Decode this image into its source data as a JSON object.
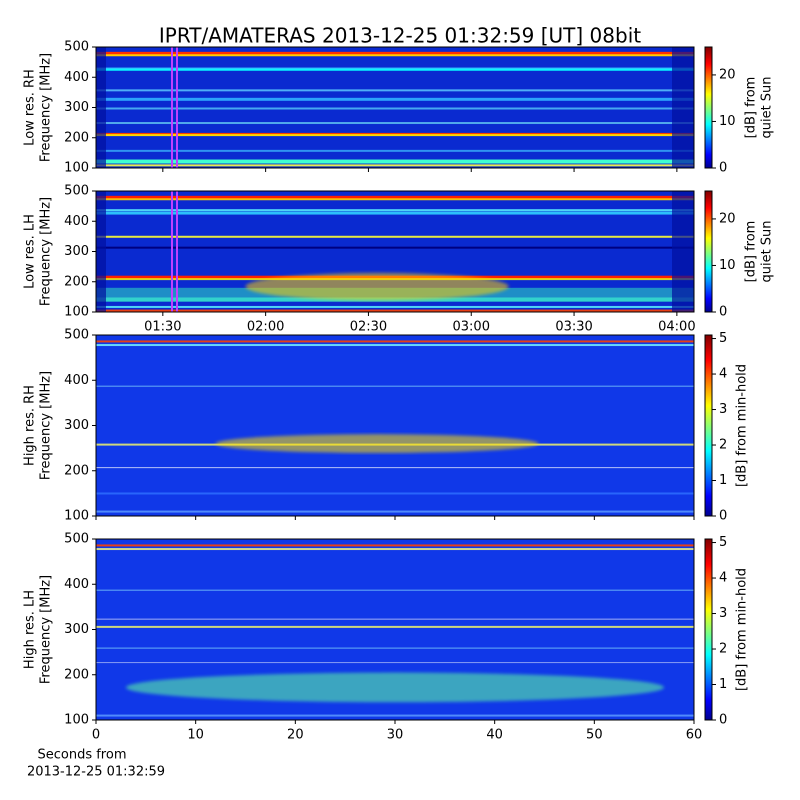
{
  "title": "IPRT/AMATERAS 2013-12-25 01:32:59 [UT]   08bit",
  "chart_data": [
    {
      "type": "heatmap",
      "ylabel": [
        "Low res. RH",
        "Frequency [MHz]"
      ],
      "xlim": [
        70.5,
        245
      ],
      "xticks": [
        90,
        120,
        150,
        180,
        210,
        240
      ],
      "ylim": [
        100,
        500
      ],
      "yticks": [
        100,
        200,
        300,
        400,
        500
      ],
      "colorbar": {
        "label": [
          "[dB] from",
          "quiet Sun"
        ],
        "lim": [
          0,
          26
        ],
        "ticks": [
          0,
          10,
          20
        ]
      }
    },
    {
      "type": "heatmap",
      "ylabel": [
        "Low res. LH",
        "Frequency [MHz]"
      ],
      "xlim": [
        70.5,
        245
      ],
      "xticks": [
        {
          "value": 90,
          "label": "01:30"
        },
        {
          "value": 120,
          "label": "02:00"
        },
        {
          "value": 150,
          "label": "02:30"
        },
        {
          "value": 180,
          "label": "03:00"
        },
        {
          "value": 210,
          "label": "03:30"
        },
        {
          "value": 240,
          "label": "04:00"
        }
      ],
      "ylim": [
        100,
        500
      ],
      "yticks": [
        100,
        200,
        300,
        400,
        500
      ],
      "colorbar": {
        "label": [
          "[dB] from",
          "quiet Sun"
        ],
        "lim": [
          0,
          26
        ],
        "ticks": [
          0,
          10,
          20
        ]
      }
    },
    {
      "type": "heatmap",
      "ylabel": [
        "High res. RH",
        "Frequency [MHz]"
      ],
      "xlim": [
        0,
        60
      ],
      "xticks": [
        0,
        10,
        20,
        30,
        40,
        50,
        60
      ],
      "ylim": [
        100,
        500
      ],
      "yticks": [
        100,
        200,
        300,
        400,
        500
      ],
      "colorbar": {
        "label": [
          "[dB] from min-hold"
        ],
        "lim": [
          0,
          5.1
        ],
        "ticks": [
          0,
          1,
          2,
          3,
          4,
          5
        ]
      }
    },
    {
      "type": "heatmap",
      "ylabel": [
        "High res. LH",
        "Frequency [MHz]"
      ],
      "xlabel": [
        "Seconds from",
        "2013-12-25 01:32:59"
      ],
      "xlim": [
        0,
        60
      ],
      "xticks": [
        0,
        10,
        20,
        30,
        40,
        50,
        60
      ],
      "ylim": [
        100,
        500
      ],
      "yticks": [
        100,
        200,
        300,
        400,
        500
      ],
      "colorbar": {
        "label": [
          "[dB] from min-hold"
        ],
        "lim": [
          0,
          5.1
        ],
        "ticks": [
          0,
          1,
          2,
          3,
          4,
          5
        ]
      }
    }
  ]
}
